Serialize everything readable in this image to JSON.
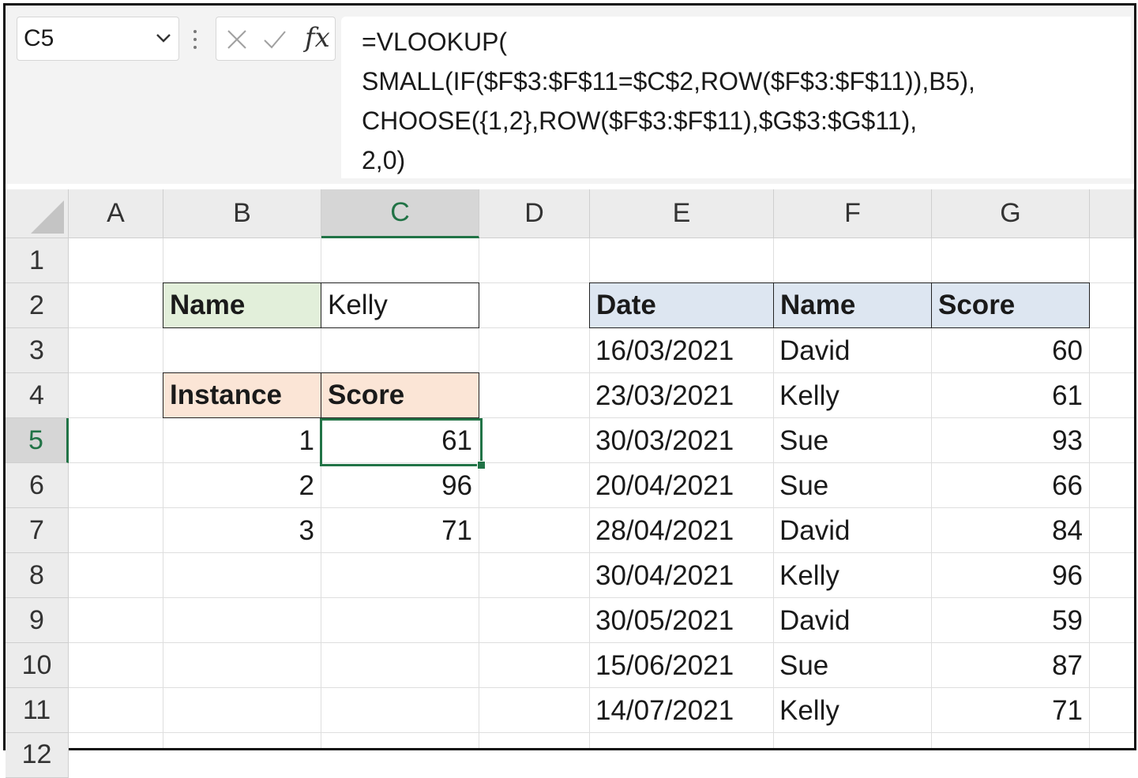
{
  "name_box": {
    "value": "C5",
    "dropdown_icon": "chevron-down-icon"
  },
  "formula_bar": {
    "cancel_icon": "close-icon",
    "enter_icon": "check-icon",
    "insert_function_label": "fx",
    "lines": [
      "=VLOOKUP(",
      "SMALL(IF($F$3:$F$11=$C$2,ROW($F$3:$F$11)),B5),",
      "CHOOSE({1,2},ROW($F$3:$F$11),$G$3:$G$11),",
      "2,0)"
    ]
  },
  "columns": [
    "A",
    "B",
    "C",
    "D",
    "E",
    "F",
    "G"
  ],
  "rows": [
    "1",
    "2",
    "3",
    "4",
    "5",
    "6",
    "7",
    "8",
    "9",
    "10",
    "11",
    "12"
  ],
  "selected_cell": "C5",
  "colors": {
    "accent": "#217346",
    "green_label": "#e2efda",
    "orange_label": "#fbe5d6",
    "blue_label": "#dde6f1"
  },
  "lookup": {
    "name_label": "Name",
    "name_value": "Kelly",
    "instance_header": "Instance",
    "score_header": "Score",
    "results": [
      {
        "instance": "1",
        "score": "61"
      },
      {
        "instance": "2",
        "score": "96"
      },
      {
        "instance": "3",
        "score": "71"
      }
    ]
  },
  "table": {
    "headers": [
      "Date",
      "Name",
      "Score"
    ],
    "rows": [
      {
        "date": "16/03/2021",
        "name": "David",
        "score": "60"
      },
      {
        "date": "23/03/2021",
        "name": "Kelly",
        "score": "61"
      },
      {
        "date": "30/03/2021",
        "name": "Sue",
        "score": "93"
      },
      {
        "date": "20/04/2021",
        "name": "Sue",
        "score": "66"
      },
      {
        "date": "28/04/2021",
        "name": "David",
        "score": "84"
      },
      {
        "date": "30/04/2021",
        "name": "Kelly",
        "score": "96"
      },
      {
        "date": "30/05/2021",
        "name": "David",
        "score": "59"
      },
      {
        "date": "15/06/2021",
        "name": "Sue",
        "score": "87"
      },
      {
        "date": "14/07/2021",
        "name": "Kelly",
        "score": "71"
      }
    ]
  }
}
